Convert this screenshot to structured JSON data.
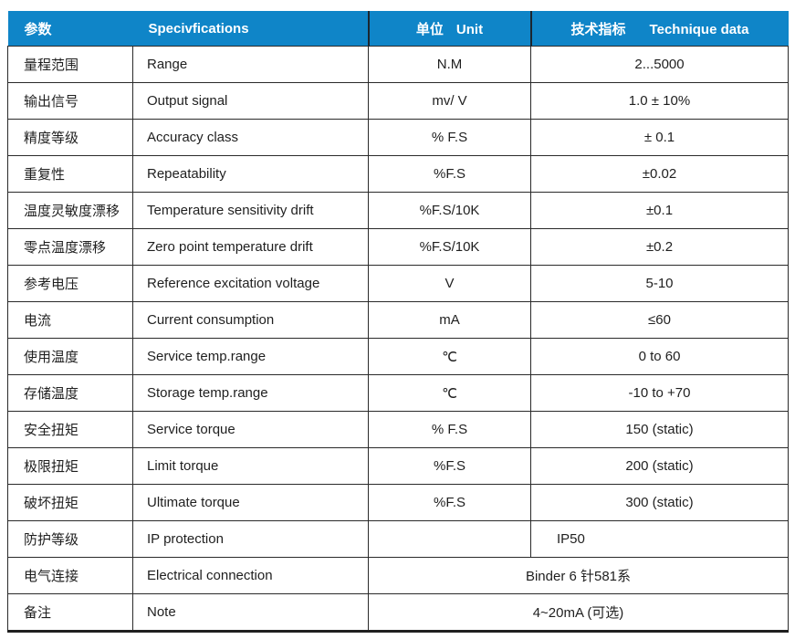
{
  "table": {
    "header": {
      "param_zh": "参数",
      "spec_en": "Specivfications",
      "unit_zh": "单位",
      "unit_en": "Unit",
      "tech_zh": "技术指标",
      "tech_en": "Technique data"
    },
    "rows": [
      {
        "param": "量程范围",
        "spec": "Range",
        "unit": "N.M",
        "value": "2...5000"
      },
      {
        "param": "输出信号",
        "spec": "Output signal",
        "unit": "mv/ V",
        "value": "1.0 ± 10%"
      },
      {
        "param": "精度等级",
        "spec": "Accuracy class",
        "unit": "% F.S",
        "value": "± 0.1"
      },
      {
        "param": "重复性",
        "spec": "Repeatability",
        "unit": "%F.S",
        "value": "±0.02"
      },
      {
        "param": "温度灵敏度漂移",
        "spec": "Temperature sensitivity drift",
        "unit": "%F.S/10K",
        "value": "±0.1"
      },
      {
        "param": "零点温度漂移",
        "spec": "Zero point temperature drift",
        "unit": "%F.S/10K",
        "value": "±0.2"
      },
      {
        "param": "参考电压",
        "spec": "Reference excitation voltage",
        "unit": "V",
        "value": "5-10"
      },
      {
        "param": "电流",
        "spec": "Current consumption",
        "unit": "mA",
        "value": "≤60"
      },
      {
        "param": "使用温度",
        "spec": "Service temp.range",
        "unit": "℃",
        "value": "0 to 60"
      },
      {
        "param": "存储温度",
        "spec": "Storage temp.range",
        "unit": "℃",
        "value": "-10 to +70"
      },
      {
        "param": "安全扭矩",
        "spec": "Service torque",
        "unit": "% F.S",
        "value": "150 (static)"
      },
      {
        "param": "极限扭矩",
        "spec": "Limit torque",
        "unit": "%F.S",
        "value": "200 (static)"
      },
      {
        "param": "破坏扭矩",
        "spec": "Ultimate torque",
        "unit": "%F.S",
        "value": "300 (static)"
      },
      {
        "param": "防护等级",
        "spec": "IP protection",
        "unit": "",
        "value": "IP50",
        "value_align": "left"
      },
      {
        "param": "电气连接",
        "spec": "Electrical connection",
        "merged": true,
        "value": "Binder 6 针581系"
      },
      {
        "param": "备注",
        "spec": "Note",
        "merged": true,
        "value": "4~20mA (可选)"
      }
    ],
    "colors": {
      "header_bg": "#0f85c8",
      "header_text": "#ffffff",
      "border": "#2a2a2a",
      "body_text": "#1f1f1f"
    }
  }
}
